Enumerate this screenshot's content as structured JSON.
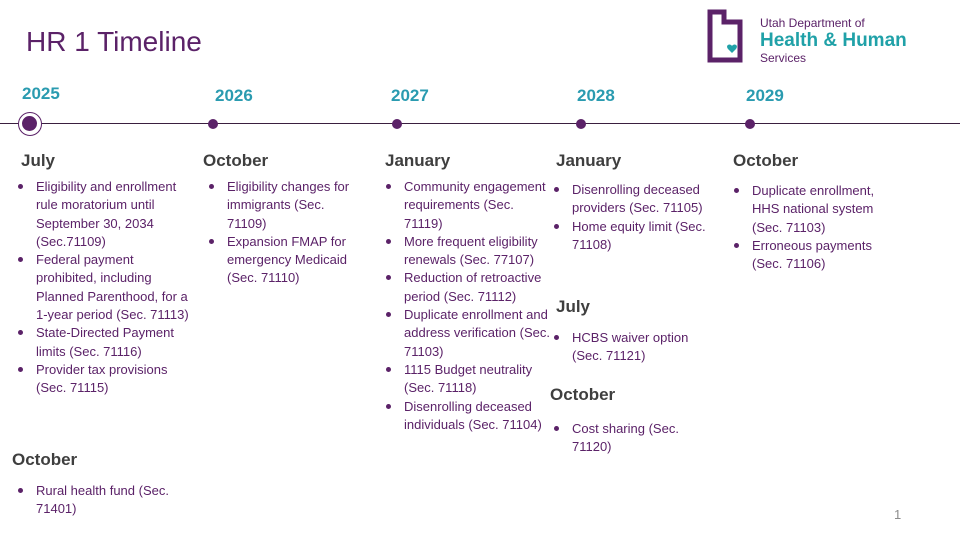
{
  "title": "HR 1 Timeline",
  "logo": {
    "line1": "Utah Department of",
    "line2": "Health & Human",
    "line3": "Services",
    "colors": {
      "purple": "#5b2268",
      "teal": "#20a1a8"
    }
  },
  "years": [
    "2025",
    "2026",
    "2027",
    "2028",
    "2029"
  ],
  "columns": [
    {
      "groups": [
        {
          "month": "July",
          "items": [
            "Eligibility and enrollment rule moratorium until September 30, 2034 (Sec.71109)",
            "Federal payment prohibited, including Planned Parenthood, for a 1-year period (Sec. 71113)",
            "State-Directed Payment limits (Sec. 71116)",
            "Provider tax provisions (Sec. 71115)"
          ]
        },
        {
          "month": "October",
          "items": [
            "Rural health fund (Sec. 71401)"
          ]
        }
      ]
    },
    {
      "groups": [
        {
          "month": "October",
          "items": [
            "Eligibility changes for immigrants (Sec. 71109)",
            "Expansion FMAP for emergency Medicaid (Sec. 71110)"
          ]
        }
      ]
    },
    {
      "groups": [
        {
          "month": "January",
          "items": [
            "Community engagement requirements (Sec. 71119)",
            "More frequent eligibility renewals (Sec. 77107)",
            "Reduction of retroactive period (Sec. 71112)",
            "Duplicate enrollment and address verification (Sec. 71103)",
            "1115 Budget neutrality (Sec. 71118)",
            "Disenrolling deceased individuals (Sec. 71104)"
          ]
        }
      ]
    },
    {
      "groups": [
        {
          "month": "January",
          "items": [
            "Disenrolling deceased providers (Sec. 71105)",
            "Home equity limit (Sec. 71108)"
          ]
        },
        {
          "month": "July",
          "items": [
            "HCBS waiver option (Sec. 71121)"
          ]
        },
        {
          "month": "October",
          "items": [
            "Cost sharing (Sec. 71120)"
          ]
        }
      ]
    },
    {
      "groups": [
        {
          "month": "October",
          "items": [
            "Duplicate enrollment, HHS national system (Sec. 71103)",
            "Erroneous payments (Sec. 71106)"
          ]
        }
      ]
    }
  ],
  "page_number": "1"
}
